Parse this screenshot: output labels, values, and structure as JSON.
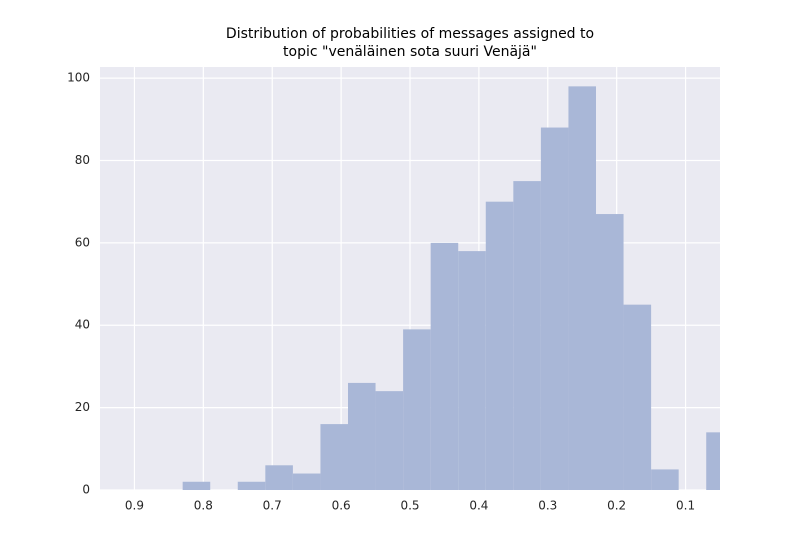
{
  "chart_data": {
    "type": "histogram",
    "title": [
      "Distribution of probabilities of messages assigned to",
      "topic \"venäläinen sota suuri Venäjä\""
    ],
    "bins": [
      0.03,
      0.07,
      0.11,
      0.15,
      0.19,
      0.23,
      0.27,
      0.31,
      0.35,
      0.39,
      0.43,
      0.47,
      0.51,
      0.55,
      0.59,
      0.63,
      0.67,
      0.71,
      0.75,
      0.79,
      0.83
    ],
    "values": [
      14,
      0,
      5,
      45,
      67,
      98,
      88,
      75,
      70,
      58,
      60,
      39,
      24,
      26,
      16,
      4,
      6,
      2,
      0,
      2
    ],
    "color": "#a9b7d7",
    "xlim": [
      0.95,
      0.05
    ],
    "xticks": [
      0.9,
      0.8,
      0.7,
      0.6,
      0.5,
      0.4,
      0.3,
      0.2,
      0.1
    ],
    "ylim": [
      0,
      102.7
    ],
    "yticks": [
      0,
      20,
      40,
      60,
      80,
      100
    ],
    "grid": true
  }
}
